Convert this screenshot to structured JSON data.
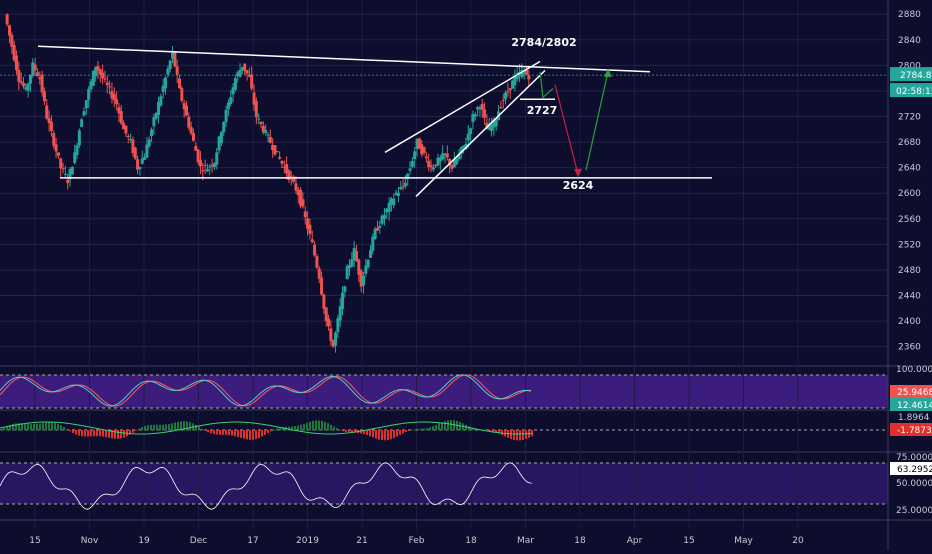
{
  "chart_data": [
    {
      "type": "candlestick",
      "title": "",
      "x_ticks": [
        "15",
        "Nov",
        "19",
        "Dec",
        "17",
        "2019",
        "21",
        "Feb",
        "18",
        "Mar",
        "18",
        "Apr",
        "15",
        "May",
        "20"
      ],
      "y_ticks": [
        "2360",
        "2400",
        "2440",
        "2480",
        "2520",
        "2560",
        "2600",
        "2640",
        "2680",
        "2720",
        "2760",
        "2800",
        "2840",
        "2880"
      ],
      "ylim": [
        2336,
        2896
      ],
      "last_price": "2784.8",
      "countdown": "02:58:13",
      "annotations": [
        {
          "text": "2784/2802",
          "value": 2802
        },
        {
          "text": "2727",
          "value": 2727
        },
        {
          "text": "2624",
          "value": 2624
        }
      ],
      "levels": {
        "support": 2624,
        "resistance_start": 2830,
        "resistance_end": 2790
      },
      "closes_approx": [
        2880,
        2830,
        2780,
        2760,
        2800,
        2780,
        2720,
        2680,
        2640,
        2620,
        2660,
        2720,
        2760,
        2800,
        2780,
        2760,
        2740,
        2700,
        2680,
        2640,
        2660,
        2700,
        2740,
        2780,
        2820,
        2760,
        2720,
        2680,
        2640,
        2640,
        2650,
        2700,
        2740,
        2780,
        2800,
        2780,
        2720,
        2700,
        2680,
        2660,
        2640,
        2620,
        2600,
        2560,
        2520,
        2470,
        2400,
        2360,
        2420,
        2480,
        2510,
        2460,
        2500,
        2540,
        2560,
        2580,
        2600,
        2610,
        2640,
        2680,
        2660,
        2640,
        2650,
        2660,
        2640,
        2660,
        2680,
        2720,
        2740,
        2700,
        2710,
        2740,
        2760,
        2780,
        2790,
        2784
      ]
    },
    {
      "type": "line",
      "indicator": "stochastic",
      "y_ticks": [
        "100.0000"
      ],
      "badges": [
        "25.9468",
        "12.4614"
      ],
      "colors": {
        "k": "#4fd1c5",
        "d": "#ff5a5a",
        "band": "#4b1c86"
      }
    },
    {
      "type": "bar",
      "indicator": "histogram",
      "badges": [
        "1.8964",
        "-1.7873"
      ],
      "colors": {
        "positive": "#1e7a3a",
        "negative": "#e0302b",
        "line": "#3bd16f"
      }
    },
    {
      "type": "line",
      "indicator": "rsi",
      "y_ticks": [
        "75.0000",
        "50.0000",
        "25.0000"
      ],
      "badges": [
        "63.2952"
      ],
      "colors": {
        "line": "#ffffff",
        "band": "#3a1a6e"
      }
    }
  ]
}
